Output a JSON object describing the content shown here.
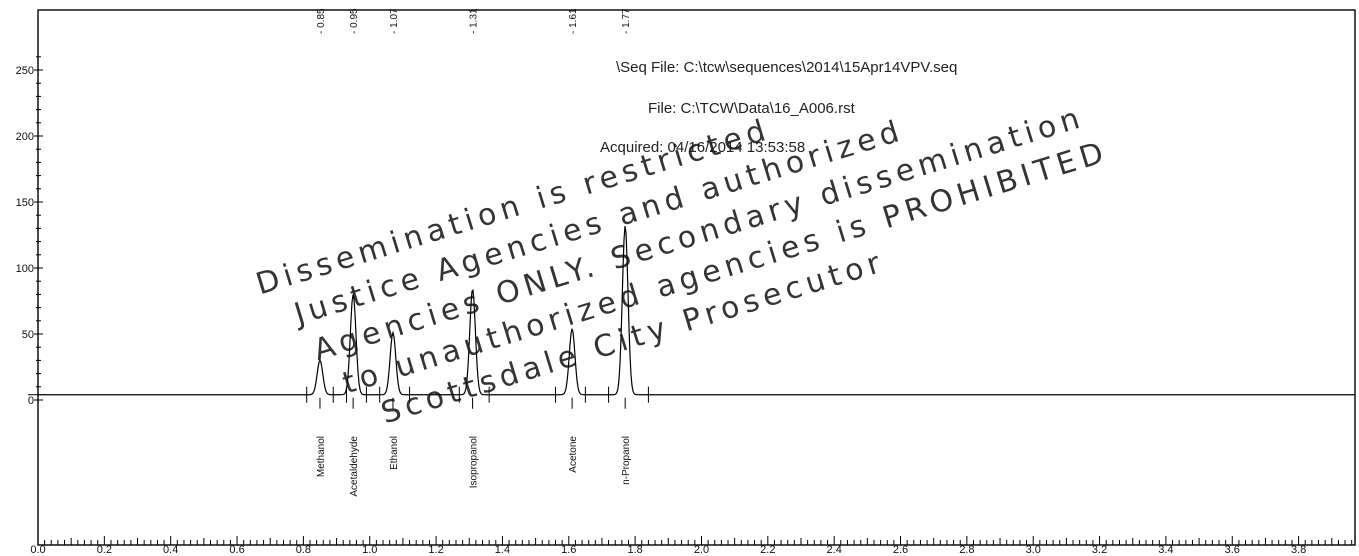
{
  "header": {
    "seq_file": "\\Seq File: C:\\tcw\\sequences\\2014\\15Apr14VPV.seq",
    "file": "File: C:\\TCW\\Data\\16_A006.rst",
    "acquired": "Acquired: 04/16/2014 13:53:58"
  },
  "watermark": {
    "lines": [
      "Dissemination is restricted",
      "Justice Agencies and authorized",
      "Agencies ONLY. Secondary dissemination",
      "to unauthorized agencies is PROHIBITED",
      "Scottsdale City Prosecutor"
    ]
  },
  "chart_data": {
    "type": "line",
    "title": "",
    "xlabel": "",
    "ylabel": "",
    "xlim": [
      0.0,
      3.97
    ],
    "ylim": [
      -5,
      265
    ],
    "x_ticks": [
      0.0,
      0.2,
      0.4,
      0.6,
      0.8,
      1.0,
      1.2,
      1.4,
      1.6,
      1.8,
      2.0,
      2.2,
      2.4,
      2.6,
      2.8,
      3.0,
      3.2,
      3.4,
      3.6,
      3.8
    ],
    "x_tick_labels": [
      "0.0",
      "0.2",
      "0.4",
      "0.6",
      "0.8",
      "1.0",
      "1.2",
      "1.4",
      "1.6",
      "1.8",
      "2.0",
      "2.2",
      "2.4",
      "2.6",
      "2.8",
      "3.0",
      "3.2",
      "3.4",
      "3.6",
      "3.8"
    ],
    "y_ticks": [
      0,
      50,
      100,
      150,
      200,
      250
    ],
    "y_tick_labels": [
      "0",
      "50",
      "100",
      "150",
      "200",
      "250"
    ],
    "baseline": 4,
    "peaks": [
      {
        "name": "Methanol",
        "rt": 0.85,
        "rt_label": "- 0.85",
        "height": 26
      },
      {
        "name": "Acetaldehyde",
        "rt": 0.95,
        "rt_label": "- 0.95",
        "height": 76
      },
      {
        "name": "Ethanol",
        "rt": 1.07,
        "rt_label": "- 1.07",
        "height": 47
      },
      {
        "name": "Isopropanol",
        "rt": 1.31,
        "rt_label": "- 1.31",
        "height": 80
      },
      {
        "name": "Acetone",
        "rt": 1.61,
        "rt_label": "- 1.61",
        "height": 50
      },
      {
        "name": "n-Propanol",
        "rt": 1.77,
        "rt_label": "- 1.77",
        "height": 128
      }
    ],
    "integration_marks": [
      0.81,
      0.89,
      0.93,
      0.99,
      1.03,
      1.12,
      1.27,
      1.36,
      1.56,
      1.65,
      1.72,
      1.84
    ],
    "grid": false,
    "colors": {
      "line": "#000000",
      "axis": "#000000"
    }
  }
}
